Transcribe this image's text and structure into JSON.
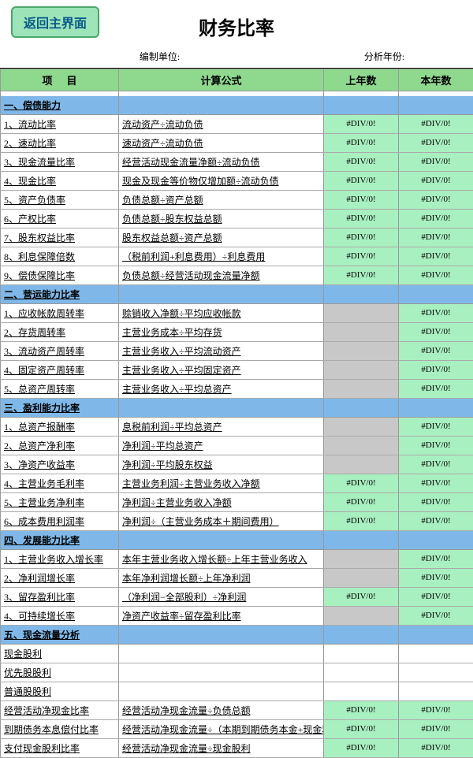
{
  "backButton": "返回主界面",
  "title": "财务比率",
  "meta": {
    "unitLabel": "编制单位:",
    "yearLabel": "分析年份:"
  },
  "headers": {
    "item": "项目",
    "formula": "计算公式",
    "prev": "上年数",
    "curr": "本年数"
  },
  "colors": {
    "headerBg": "#8fd98f",
    "sectionBg": "#7fb8e8",
    "valGreen": "#a8f0c0",
    "valGrey": "#c8c8c8",
    "btnBg": "#9de4b9",
    "btnBorder": "#4aa66b",
    "btnText": "#0a5a8a"
  },
  "err": "#DIV/0!",
  "sections": [
    {
      "title": "一、偿债能力",
      "rows": [
        {
          "item": "1、流动比率",
          "formula": "流动资产÷流动负债",
          "prev": "#DIV/0!",
          "curr": "#DIV/0!",
          "pc": "green",
          "cc": "green"
        },
        {
          "item": "2、速动比率",
          "formula": "速动资产÷流动负债",
          "prev": "#DIV/0!",
          "curr": "#DIV/0!",
          "pc": "green",
          "cc": "green"
        },
        {
          "item": "3、现金流量比率",
          "formula": "经营活动现金流量净额÷流动负债",
          "prev": "#DIV/0!",
          "curr": "#DIV/0!",
          "pc": "green",
          "cc": "green"
        },
        {
          "item": "4、现金比率",
          "formula": "现金及现金等价物仅增加额÷流动负债",
          "prev": "#DIV/0!",
          "curr": "#DIV/0!",
          "pc": "green",
          "cc": "green"
        },
        {
          "item": "5、资产负债率",
          "formula": "负债总额÷资产总额",
          "prev": "#DIV/0!",
          "curr": "#DIV/0!",
          "pc": "green",
          "cc": "green"
        },
        {
          "item": "6、产权比率",
          "formula": "负债总额÷股东权益总额",
          "prev": "#DIV/0!",
          "curr": "#DIV/0!",
          "pc": "green",
          "cc": "green"
        },
        {
          "item": "7、股东权益比率",
          "formula": "股东权益总额÷资产总额",
          "prev": "#DIV/0!",
          "curr": "#DIV/0!",
          "pc": "green",
          "cc": "green"
        },
        {
          "item": "8、利息保障倍数",
          "formula": "（税前利润+利息费用）÷利息费用",
          "prev": "#DIV/0!",
          "curr": "#DIV/0!",
          "pc": "green",
          "cc": "green"
        },
        {
          "item": "9、偿债保障比率",
          "formula": "负债总额÷经营活动现金流量净额",
          "prev": "#DIV/0!",
          "curr": "#DIV/0!",
          "pc": "green",
          "cc": "green"
        }
      ]
    },
    {
      "title": "二、营运能力比率",
      "rows": [
        {
          "item": "1、应收帐款周转率",
          "formula": "赊销收入净额÷平均应收帐款",
          "prev": "",
          "curr": "#DIV/0!",
          "pc": "grey",
          "cc": "green"
        },
        {
          "item": "2、存货周转率",
          "formula": "主营业务成本÷平均存货",
          "prev": "",
          "curr": "#DIV/0!",
          "pc": "grey",
          "cc": "green"
        },
        {
          "item": "3、流动资产周转率",
          "formula": "主营业务收入÷平均流动资产",
          "prev": "",
          "curr": "#DIV/0!",
          "pc": "grey",
          "cc": "green"
        },
        {
          "item": "4、固定资产周转率",
          "formula": "主营业务收入÷平均固定资产",
          "prev": "",
          "curr": "#DIV/0!",
          "pc": "grey",
          "cc": "green"
        },
        {
          "item": "5、总资产周转率",
          "formula": "主营业务收入÷平均总资产",
          "prev": "",
          "curr": "#DIV/0!",
          "pc": "grey",
          "cc": "green"
        }
      ]
    },
    {
      "title": "三、盈利能力比率",
      "rows": [
        {
          "item": "1、总资产报酬率",
          "formula": "息税前利润÷平均总资产",
          "prev": "",
          "curr": "#DIV/0!",
          "pc": "grey",
          "cc": "green"
        },
        {
          "item": "2、总资产净利率",
          "formula": "净利润÷平均总资产",
          "prev": "",
          "curr": "#DIV/0!",
          "pc": "grey",
          "cc": "green"
        },
        {
          "item": "3、净资产收益率",
          "formula": "净利润÷平均股东权益",
          "prev": "",
          "curr": "#DIV/0!",
          "pc": "grey",
          "cc": "green"
        },
        {
          "item": "4、主营业务毛利率",
          "formula": "主营业务利润÷主营业务收入净额",
          "prev": "#DIV/0!",
          "curr": "#DIV/0!",
          "pc": "green",
          "cc": "green"
        },
        {
          "item": "5、主营业务净利率",
          "formula": "净利润÷主营业务收入净额",
          "prev": "#DIV/0!",
          "curr": "#DIV/0!",
          "pc": "green",
          "cc": "green"
        },
        {
          "item": "6、成本费用利润率",
          "formula": "净利润÷（主营业务成本＋期间费用）",
          "prev": "#DIV/0!",
          "curr": "#DIV/0!",
          "pc": "green",
          "cc": "green"
        }
      ]
    },
    {
      "title": "四、发展能力比率",
      "rows": [
        {
          "item": "1、主营业务收入增长率",
          "formula": "本年主营业务收入增长额÷上年主营业务收入",
          "prev": "",
          "curr": "#DIV/0!",
          "pc": "grey",
          "cc": "green"
        },
        {
          "item": "2、净利润增长率",
          "formula": "本年净利润增长额÷上年净利润",
          "prev": "",
          "curr": "#DIV/0!",
          "pc": "grey",
          "cc": "green"
        },
        {
          "item": "3、留存盈利比率",
          "formula": "（净利润−全部股利）÷净利润",
          "prev": "#DIV/0!",
          "curr": "#DIV/0!",
          "pc": "green",
          "cc": "green"
        },
        {
          "item": "4、可持续增长率",
          "formula": "净资产收益率÷留存盈利比率",
          "prev": "",
          "curr": "#DIV/0!",
          "pc": "grey",
          "cc": "green"
        }
      ]
    },
    {
      "title": "五、现金流量分析",
      "rows": [
        {
          "item": "现金股利",
          "formula": "",
          "prev": "",
          "curr": "",
          "pc": "white",
          "cc": "white"
        },
        {
          "item": "优先股股利",
          "formula": "",
          "prev": "",
          "curr": "",
          "pc": "white",
          "cc": "white"
        },
        {
          "item": "普通股股利",
          "formula": "",
          "prev": "",
          "curr": "",
          "pc": "white",
          "cc": "white"
        },
        {
          "item": "经营活动净现金比率",
          "formula": "经营活动净现金流量÷负债总额",
          "prev": "#DIV/0!",
          "curr": "#DIV/0!",
          "pc": "green",
          "cc": "green"
        },
        {
          "item": "到期债务本息偿付比率",
          "formula": "经营活动净现金流量÷（本期到期债务本金+现金利息支出）",
          "prev": "#DIV/0!",
          "curr": "#DIV/0!",
          "pc": "green",
          "cc": "green"
        },
        {
          "item": "支付现金股利比率",
          "formula": "经营活动净现金流量÷现金股利",
          "prev": "#DIV/0!",
          "curr": "#DIV/0!",
          "pc": "green",
          "cc": "green"
        }
      ]
    }
  ]
}
